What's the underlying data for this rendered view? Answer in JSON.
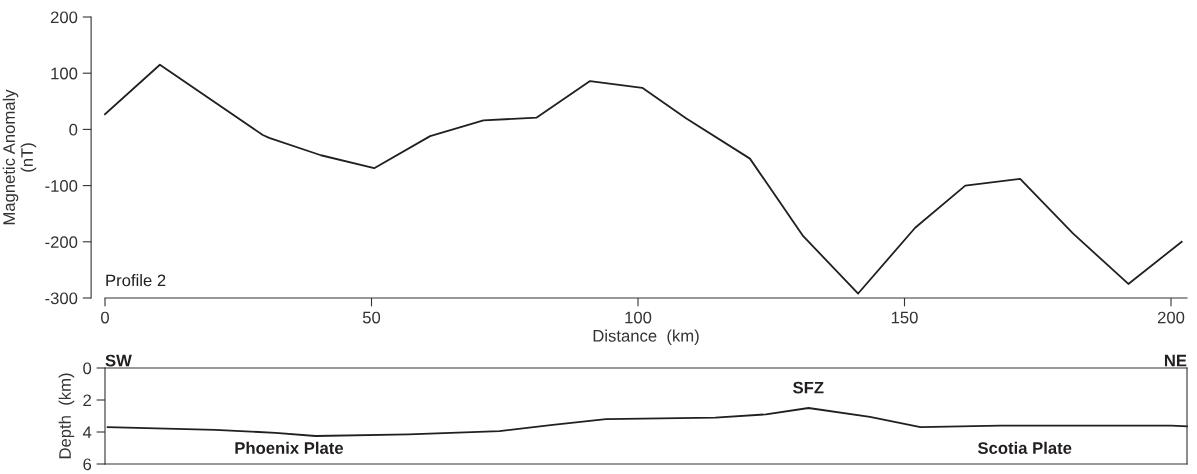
{
  "chart_data": [
    {
      "type": "line",
      "xlabel": "Distance  (km)",
      "ylabel": "Magnetic Anomaly\n(nT)",
      "xlim": [
        0,
        203
      ],
      "ylim": [
        -300,
        200
      ],
      "xticks": [
        0,
        50,
        100,
        150,
        200
      ],
      "yticks": [
        -300,
        -200,
        -100,
        0,
        100,
        200
      ],
      "grid": false,
      "marker": "none",
      "line_style": "solid",
      "series": [
        {
          "color": "#231f20",
          "x": [
            0,
            10.3,
            29.6,
            30.8,
            40.5,
            50.5,
            61,
            71,
            81,
            91,
            100.8,
            109,
            121,
            131,
            141.3,
            152,
            161.4,
            171.7,
            181.6,
            192,
            202
          ],
          "values": [
            27,
            115,
            -10,
            -15,
            -46,
            -69,
            -12,
            16,
            21,
            86,
            74,
            20,
            -52,
            -190,
            -292,
            -175,
            -100,
            -88,
            -185,
            -275,
            -200
          ]
        }
      ],
      "annotations": [
        "Profile 2",
        "SW",
        "NE"
      ]
    },
    {
      "type": "line",
      "ylabel": "Depth  (km)",
      "xlim": [
        0,
        203
      ],
      "ylim": [
        6,
        0
      ],
      "yticks": [
        0,
        2,
        4,
        6
      ],
      "tick_labels": "y",
      "grid": false,
      "marker": "none",
      "line_style": "solid",
      "series": [
        {
          "color": "#231f20",
          "x": [
            0.5,
            20.7,
            32,
            39.5,
            57,
            74,
            84,
            94,
            114.5,
            124,
            132,
            143.5,
            153,
            168,
            200,
            203
          ],
          "values": [
            3.7,
            3.87,
            4.05,
            4.25,
            4.15,
            3.95,
            3.55,
            3.2,
            3.1,
            2.9,
            2.5,
            3.05,
            3.7,
            3.6,
            3.6,
            3.65
          ]
        }
      ],
      "annotations": [
        "Phoenix Plate",
        "SFZ",
        "Scotia Plate"
      ]
    }
  ]
}
